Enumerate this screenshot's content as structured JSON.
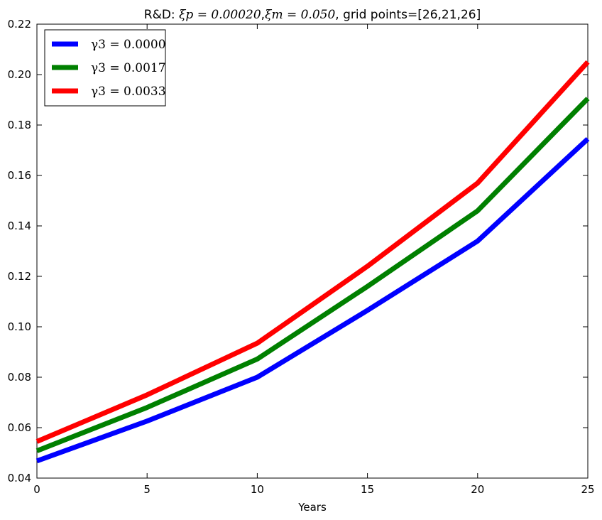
{
  "chart_data": {
    "type": "line",
    "title_prefix": "R&D: ",
    "title_math_1": "ξp = 0.00020",
    "title_sep": ",",
    "title_math_2": "ξm = 0.050",
    "title_suffix": ", grid points=[26,21,26]",
    "xlabel": "Years",
    "ylabel": "",
    "xlim": [
      0,
      25
    ],
    "ylim": [
      0.04,
      0.22
    ],
    "xticks": [
      "0",
      "5",
      "10",
      "15",
      "20",
      "25"
    ],
    "xtick_values": [
      0,
      5,
      10,
      15,
      20,
      25
    ],
    "yticks": [
      "0.04",
      "0.06",
      "0.08",
      "0.10",
      "0.12",
      "0.14",
      "0.16",
      "0.18",
      "0.20",
      "0.22"
    ],
    "ytick_values": [
      0.04,
      0.06,
      0.08,
      0.1,
      0.12,
      0.14,
      0.16,
      0.18,
      0.2,
      0.22
    ],
    "grid": false,
    "legend_position": "top-left",
    "x": [
      0,
      5,
      10,
      15,
      20,
      25
    ],
    "series": [
      {
        "name": "γ3 = 0.0000",
        "color": "#0000ff",
        "values": [
          0.0468,
          0.0626,
          0.08,
          0.1065,
          0.134,
          0.1745
        ]
      },
      {
        "name": "γ3 = 0.0017",
        "color": "#008000",
        "values": [
          0.0508,
          0.068,
          0.0872,
          0.116,
          0.146,
          0.1905
        ]
      },
      {
        "name": "γ3 = 0.0033",
        "color": "#ff0000",
        "values": [
          0.0545,
          0.073,
          0.0935,
          0.124,
          0.157,
          0.205
        ]
      }
    ]
  }
}
